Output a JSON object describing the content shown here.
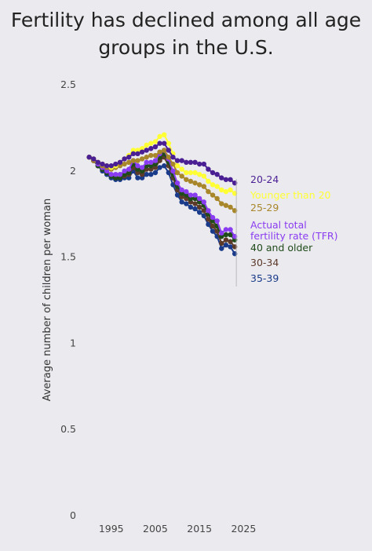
{
  "title": "Fertility has declined among all age groups in the U.S.",
  "chart_data": {
    "type": "line",
    "title": "Fertility has declined among all age groups in the U.S.",
    "xlabel": "",
    "ylabel": "Average number of children per woman",
    "xlim": [
      1989,
      2026
    ],
    "ylim": [
      0,
      2.5
    ],
    "x_ticks": [
      "1995",
      "2005",
      "2015",
      "2025"
    ],
    "y_ticks": [
      "0",
      "0.5",
      "1",
      "1.5",
      "2",
      "2.5"
    ],
    "grid": false,
    "legend": "right, direct labels",
    "x": [
      1990,
      1991,
      1992,
      1993,
      1994,
      1995,
      1996,
      1997,
      1998,
      1999,
      2000,
      2001,
      2002,
      2003,
      2004,
      2005,
      2006,
      2007,
      2008,
      2009,
      2010,
      2011,
      2012,
      2013,
      2014,
      2015,
      2016,
      2017,
      2018,
      2019,
      2020,
      2021,
      2022,
      2023
    ],
    "series": [
      {
        "name": "20-24",
        "color": "#4b1f94",
        "values": [
          2.08,
          2.07,
          2.05,
          2.04,
          2.03,
          2.03,
          2.04,
          2.05,
          2.07,
          2.08,
          2.1,
          2.1,
          2.11,
          2.12,
          2.13,
          2.14,
          2.16,
          2.16,
          2.12,
          2.08,
          2.06,
          2.06,
          2.05,
          2.05,
          2.05,
          2.04,
          2.04,
          2.01,
          1.99,
          1.98,
          1.96,
          1.95,
          1.95,
          1.93
        ]
      },
      {
        "name": "Younger than 20",
        "color": "#ffff33",
        "values": [
          2.08,
          2.07,
          2.05,
          2.04,
          2.03,
          2.02,
          2.03,
          2.05,
          2.07,
          2.09,
          2.12,
          2.12,
          2.13,
          2.15,
          2.16,
          2.17,
          2.2,
          2.21,
          2.16,
          2.1,
          2.03,
          2.01,
          1.99,
          1.99,
          1.99,
          1.98,
          1.97,
          1.94,
          1.92,
          1.91,
          1.89,
          1.88,
          1.89,
          1.87
        ]
      },
      {
        "name": "25-29",
        "color": "#a8862a",
        "values": [
          2.08,
          2.06,
          2.05,
          2.03,
          2.02,
          2.01,
          2.02,
          2.03,
          2.04,
          2.05,
          2.06,
          2.06,
          2.07,
          2.08,
          2.09,
          2.09,
          2.11,
          2.12,
          2.08,
          2.04,
          1.99,
          1.97,
          1.95,
          1.94,
          1.93,
          1.92,
          1.91,
          1.88,
          1.86,
          1.84,
          1.81,
          1.8,
          1.79,
          1.77
        ]
      },
      {
        "name": "Actual total fertility rate (TFR)",
        "color": "#8a3cf0",
        "values": [
          2.08,
          2.06,
          2.04,
          2.02,
          2.0,
          1.98,
          1.98,
          1.98,
          2.0,
          2.01,
          2.06,
          2.03,
          2.02,
          2.05,
          2.05,
          2.06,
          2.1,
          2.12,
          2.07,
          2.0,
          1.93,
          1.89,
          1.88,
          1.86,
          1.86,
          1.84,
          1.82,
          1.77,
          1.73,
          1.71,
          1.64,
          1.66,
          1.66,
          1.62
        ]
      },
      {
        "name": "40 and older",
        "color": "#1f4a1a",
        "values": [
          2.08,
          2.06,
          2.03,
          2.01,
          1.99,
          1.97,
          1.96,
          1.96,
          1.98,
          1.99,
          2.04,
          2.01,
          2.0,
          2.03,
          2.03,
          2.04,
          2.08,
          2.1,
          2.05,
          1.98,
          1.91,
          1.87,
          1.86,
          1.84,
          1.84,
          1.82,
          1.8,
          1.75,
          1.71,
          1.68,
          1.62,
          1.63,
          1.63,
          1.6
        ]
      },
      {
        "name": "30-34",
        "color": "#5c3a2a",
        "values": [
          2.08,
          2.06,
          2.03,
          2.01,
          1.99,
          1.97,
          1.96,
          1.96,
          1.97,
          1.98,
          2.02,
          1.99,
          1.98,
          2.01,
          2.01,
          2.02,
          2.06,
          2.08,
          2.03,
          1.96,
          1.89,
          1.85,
          1.84,
          1.82,
          1.81,
          1.79,
          1.77,
          1.72,
          1.68,
          1.65,
          1.58,
          1.6,
          1.59,
          1.56
        ]
      },
      {
        "name": "35-39",
        "color": "#1a3a8a",
        "values": [
          2.08,
          2.06,
          2.03,
          2.0,
          1.98,
          1.96,
          1.95,
          1.95,
          1.96,
          1.96,
          2.0,
          1.96,
          1.96,
          1.98,
          1.98,
          1.99,
          2.02,
          2.03,
          1.99,
          1.92,
          1.86,
          1.82,
          1.81,
          1.79,
          1.78,
          1.76,
          1.74,
          1.69,
          1.65,
          1.62,
          1.55,
          1.57,
          1.56,
          1.52
        ]
      }
    ],
    "label_order": [
      "20-24",
      "Younger than 20",
      "25-29",
      "Actual total fertility rate (TFR)",
      "40 and older",
      "30-34",
      "35-39"
    ]
  }
}
